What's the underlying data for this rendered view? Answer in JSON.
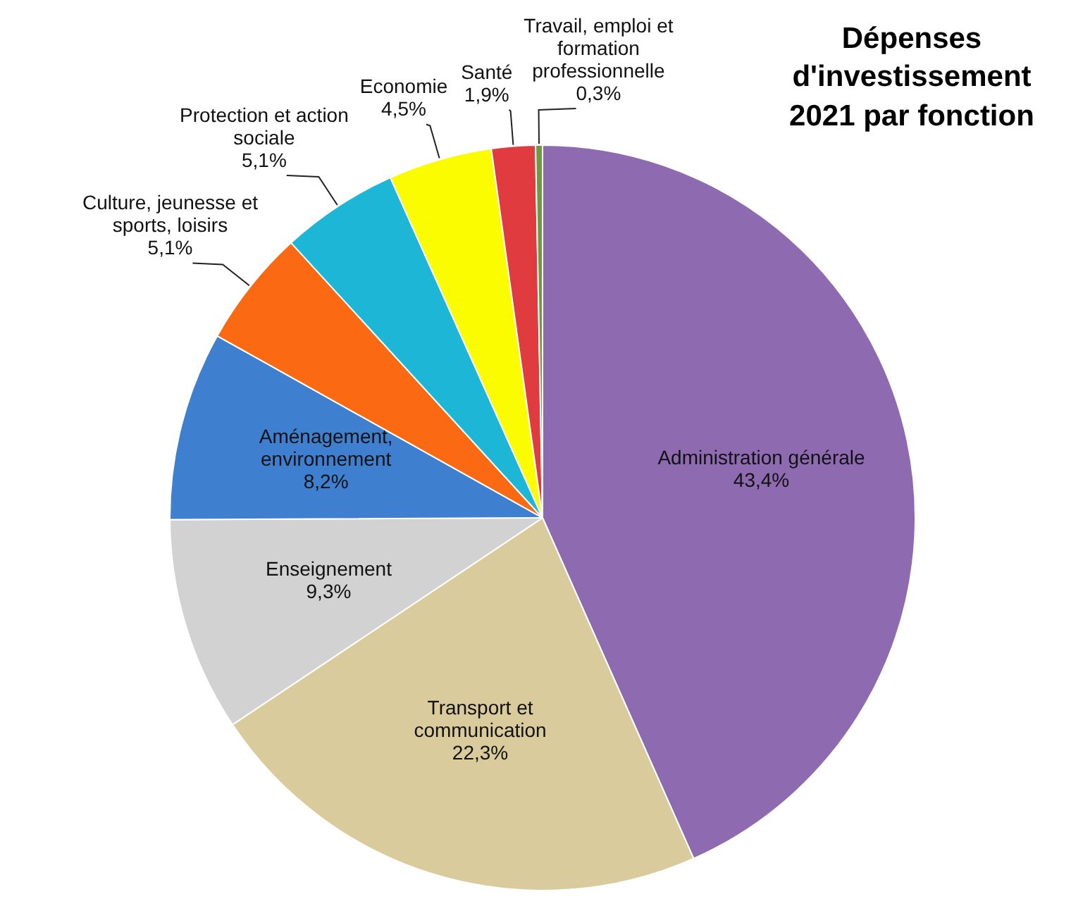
{
  "chart_data": {
    "type": "pie",
    "title": "Dépenses d'investissement 2021 par fonction",
    "categories": [
      "Administration générale",
      "Transport et communication",
      "Enseignement",
      "Aménagement, environnement",
      "Culture, jeunesse et sports, loisirs",
      "Protection et action sociale",
      "Economie",
      "Santé",
      "Travail, emploi et formation professionnelle"
    ],
    "values": [
      43.4,
      22.3,
      9.3,
      8.2,
      5.1,
      5.1,
      4.5,
      1.9,
      0.3
    ],
    "value_labels": [
      "43,4%",
      "22,3%",
      "9,3%",
      "8,2%",
      "5,1%",
      "5,1%",
      "4,5%",
      "1,9%",
      "0,3%"
    ],
    "colors": [
      "#8e6ab0",
      "#d9cb9c",
      "#d2d2d2",
      "#3f7fcf",
      "#fb6a12",
      "#1eb6d6",
      "#fcfc00",
      "#e03b3e",
      "#6f9a3f"
    ],
    "legend": false
  }
}
